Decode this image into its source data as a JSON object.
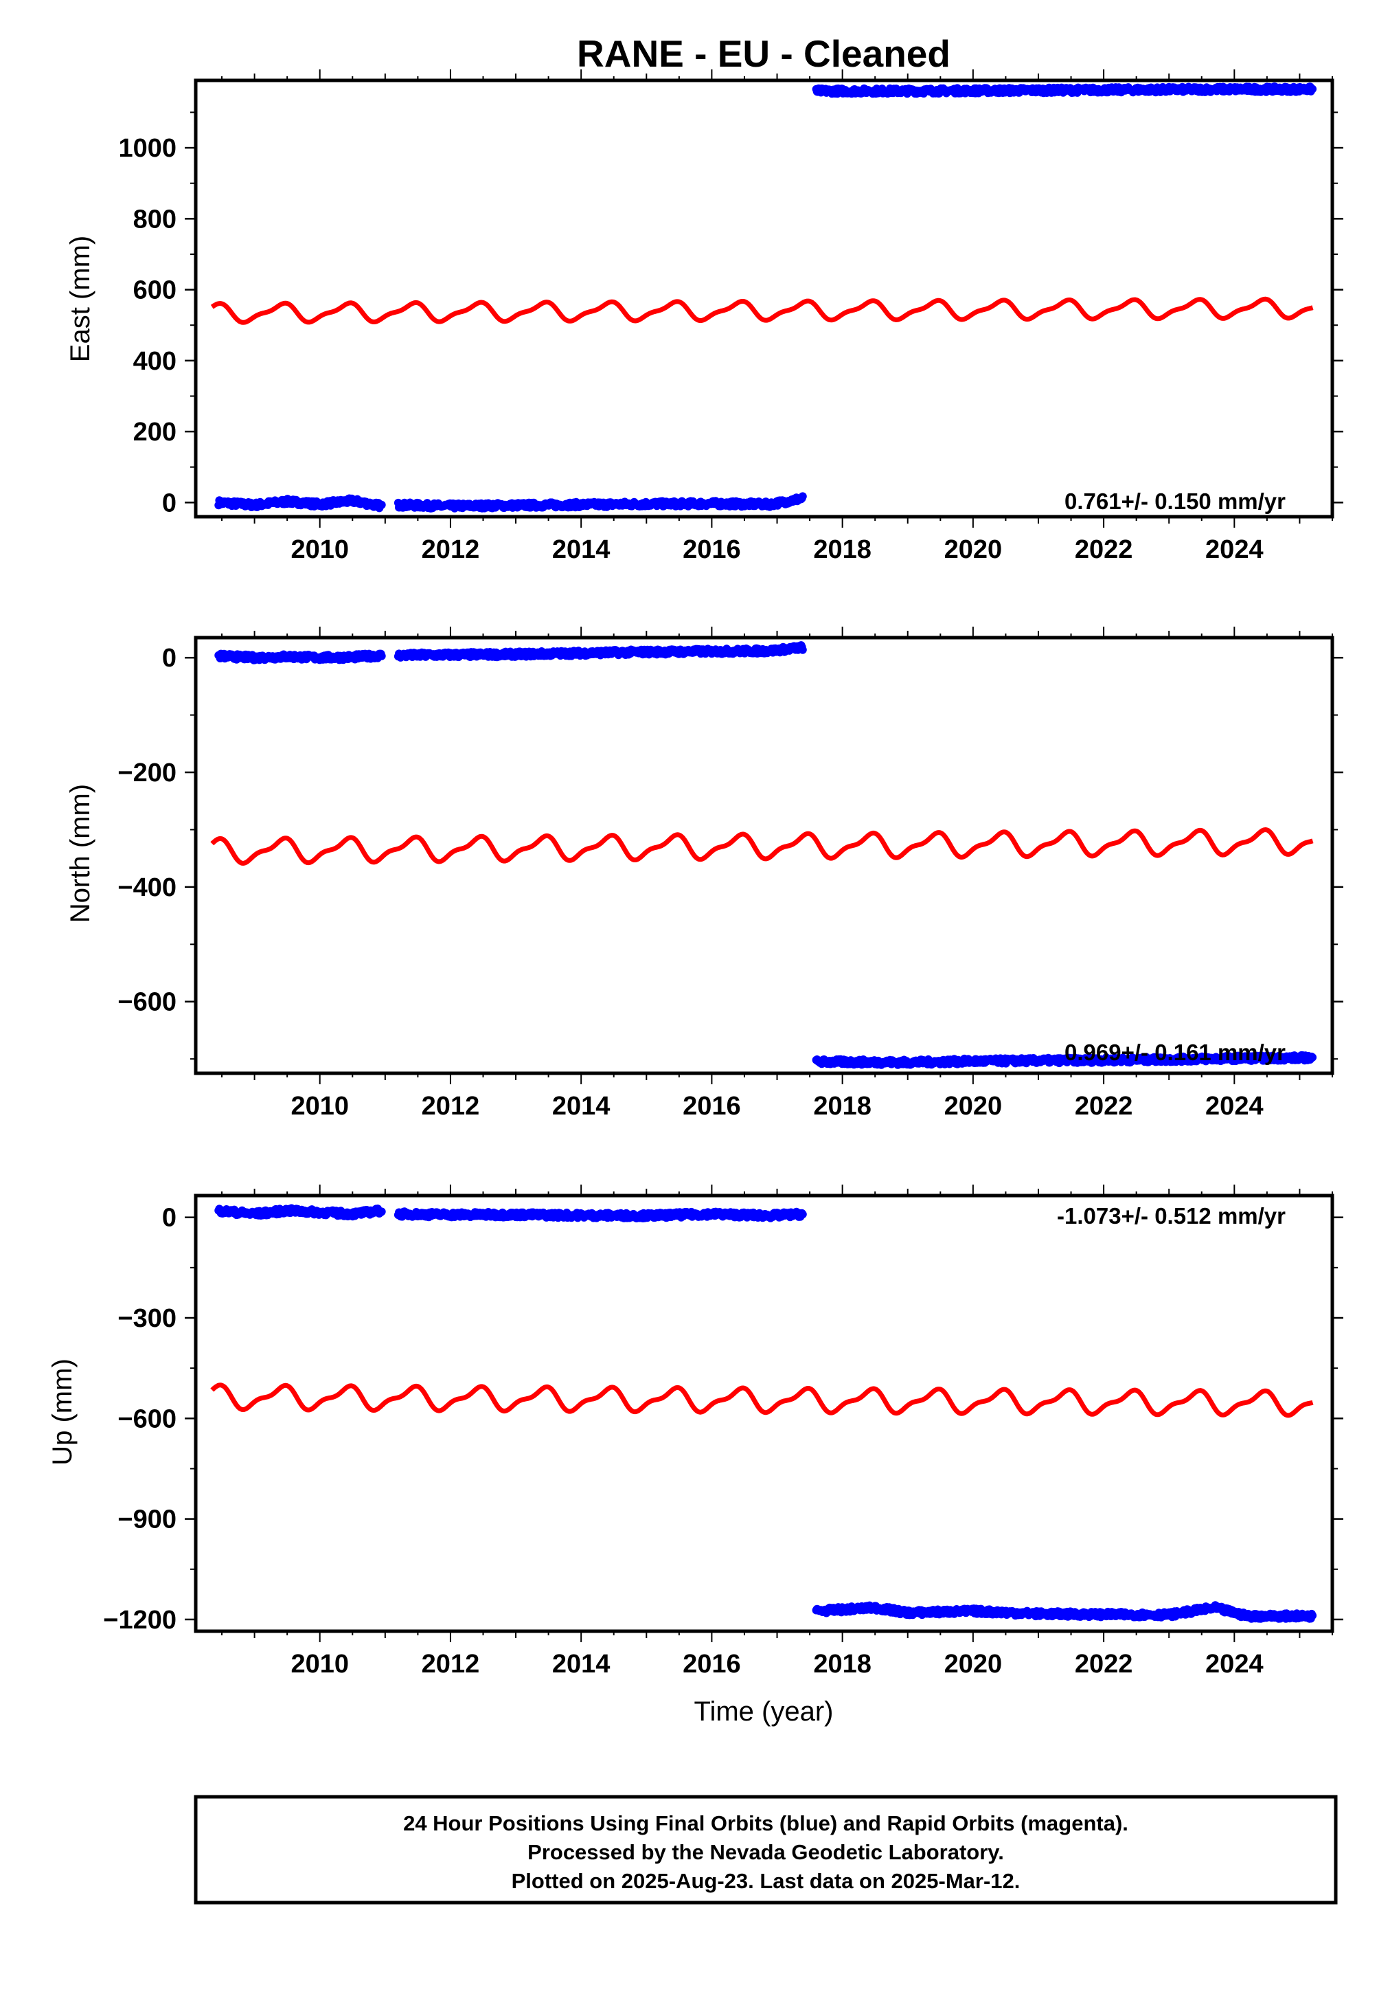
{
  "title": "RANE  - EU - Cleaned",
  "xlabel": "Time (year)",
  "footer": {
    "lines": [
      "24 Hour Positions Using Final Orbits (blue) and Rapid Orbits (magenta).",
      "Processed by the Nevada Geodetic Laboratory.",
      "Plotted on 2025-Aug-23. Last data on 2025-Mar-12."
    ]
  },
  "colors": {
    "final_orbits": "#0000ff",
    "model": "#ff0000",
    "frame": "#000000"
  },
  "chart_data": [
    {
      "type": "scatter",
      "ylabel": "East (mm)",
      "rate_label": "0.761+/- 0.150 mm/yr",
      "xlim": [
        2008.1,
        2025.5
      ],
      "ylim": [
        -40,
        1190
      ],
      "xticks": [
        2010,
        2012,
        2014,
        2016,
        2018,
        2020,
        2022,
        2024
      ],
      "yticks": [
        0,
        200,
        400,
        600,
        800,
        1000
      ],
      "yticks_minor": [
        100,
        300,
        500,
        700,
        900,
        1100
      ],
      "series": [
        {
          "role": "final_orbits",
          "segments": [
            {
              "x": [
                2008.45,
                2009.0,
                2009.5,
                2010.0,
                2010.5,
                2010.95
              ],
              "y": [
                0,
                -7,
                3,
                -5,
                5,
                -10
              ]
            },
            {
              "x": [
                2011.2,
                2012.0,
                2013.0,
                2014.0,
                2015.0,
                2016.0,
                2016.9,
                2017.4
              ],
              "y": [
                -7,
                -10,
                -8,
                -6,
                -4,
                -3,
                -5,
                12
              ]
            },
            {
              "x": [
                2017.6,
                2019.0,
                2020.0,
                2021.0,
                2022.0,
                2023.0,
                2024.0,
                2025.2
              ],
              "y": [
                1160,
                1160,
                1161,
                1162,
                1163,
                1164,
                1165,
                1165
              ]
            }
          ]
        },
        {
          "role": "model",
          "x_start": 2008.35,
          "x_end": 2025.2,
          "base": 540,
          "trend_per_year": 0.761,
          "annual_amp": 23,
          "semiannual_amp": 8
        }
      ]
    },
    {
      "type": "scatter",
      "ylabel": "North (mm)",
      "rate_label": "0.969+/- 0.161 mm/yr",
      "xlim": [
        2008.1,
        2025.5
      ],
      "ylim": [
        -725,
        35
      ],
      "xticks": [
        2010,
        2012,
        2014,
        2016,
        2018,
        2020,
        2022,
        2024
      ],
      "yticks": [
        0,
        -200,
        -400,
        -600
      ],
      "yticks_minor": [
        -100,
        -300,
        -500,
        -700
      ],
      "series": [
        {
          "role": "final_orbits",
          "segments": [
            {
              "x": [
                2008.45,
                2009.0,
                2009.5,
                2010.0,
                2010.5,
                2010.95
              ],
              "y": [
                3,
                0,
                2,
                0,
                1,
                4
              ]
            },
            {
              "x": [
                2011.2,
                2012.0,
                2013.0,
                2014.0,
                2015.0,
                2016.0,
                2016.9,
                2017.4
              ],
              "y": [
                4,
                5,
                6,
                8,
                10,
                11,
                12,
                18
              ]
            },
            {
              "x": [
                2017.6,
                2019.0,
                2020.0,
                2021.0,
                2022.0,
                2023.0,
                2024.0,
                2025.2
              ],
              "y": [
                -705,
                -706,
                -704,
                -703,
                -702,
                -701,
                -699,
                -698
              ]
            }
          ]
        },
        {
          "role": "model",
          "x_start": 2008.35,
          "x_end": 2025.2,
          "base": -330,
          "trend_per_year": 0.969,
          "annual_amp": 18,
          "semiannual_amp": 7
        }
      ]
    },
    {
      "type": "scatter",
      "ylabel": "Up (mm)",
      "rate_label": "-1.073+/- 0.512 mm/yr",
      "xlim": [
        2008.1,
        2025.5
      ],
      "ylim": [
        -1235,
        65
      ],
      "xticks": [
        2010,
        2012,
        2014,
        2016,
        2018,
        2020,
        2022,
        2024
      ],
      "yticks": [
        0,
        -300,
        -600,
        -900,
        -1200
      ],
      "yticks_minor": [
        -150,
        -450,
        -750,
        -1050
      ],
      "series": [
        {
          "role": "final_orbits",
          "segments": [
            {
              "x": [
                2008.45,
                2009.0,
                2009.5,
                2010.0,
                2010.5,
                2010.95
              ],
              "y": [
                20,
                10,
                20,
                15,
                10,
                20
              ]
            },
            {
              "x": [
                2011.2,
                2012.0,
                2013.0,
                2014.0,
                2015.0,
                2016.0,
                2016.9,
                2017.4
              ],
              "y": [
                10,
                8,
                8,
                6,
                5,
                10,
                5,
                10
              ]
            },
            {
              "x": [
                2017.6,
                2018.5,
                2019.0,
                2020.0,
                2021.0,
                2022.0,
                2023.0,
                2023.7,
                2024.2,
                2025.2
              ],
              "y": [
                -1175,
                -1165,
                -1180,
                -1175,
                -1183,
                -1185,
                -1186,
                -1165,
                -1190,
                -1190
              ]
            }
          ]
        },
        {
          "role": "model",
          "x_start": 2008.35,
          "x_end": 2025.2,
          "base": -545,
          "trend_per_year": -1.073,
          "annual_amp": 30,
          "semiannual_amp": 12
        }
      ]
    }
  ]
}
